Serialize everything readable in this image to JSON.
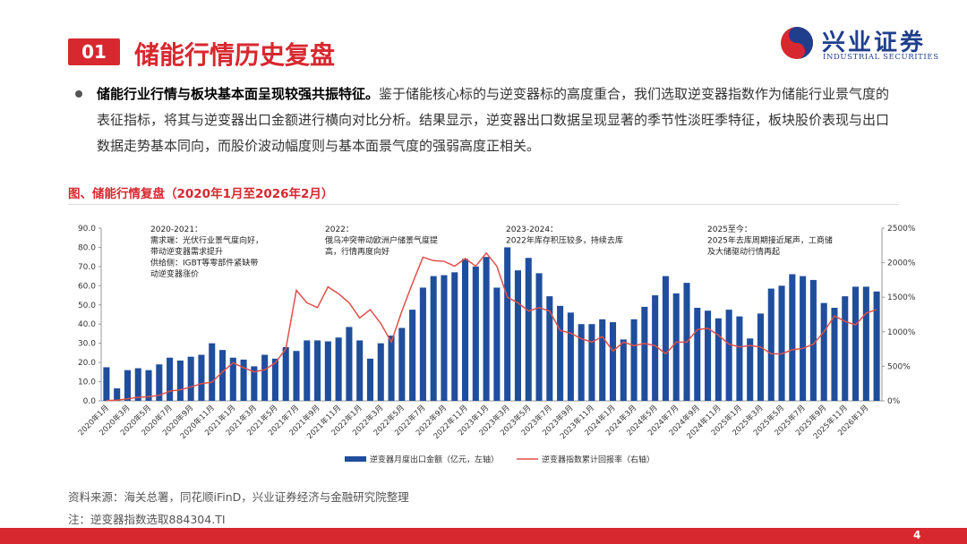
{
  "header": {
    "number": "01",
    "title": "储能行情历史复盘",
    "logo_cn": "兴业证券",
    "logo_en": "INDUSTRIAL SECURITIES"
  },
  "bullet": {
    "lead": "储能行业行情与板块基本面呈现较强共振特征。",
    "body": "鉴于储能核心标的与逆变器标的高度重合，我们选取逆变器指数作为储能行业景气度的表征指标，将其与逆变器出口金额进行横向对比分析。结果显示，逆变器出口数据呈现显著的季节性淡旺季特征，板块股价表现与出口数据走势基本同向，而股价波动幅度则与基本面景气度的强弱高度正相关。"
  },
  "figure_title": "图、储能行情复盘（2020年1月至2026年2月）",
  "source": "资料来源：海关总署，同花顺iFinD，兴业证券经济与金融研究院整理",
  "note": "注：逆变器指数选取884304.TI",
  "page_number": "4",
  "chart_data": {
    "type": "bar",
    "categories": [
      "2020年1月",
      null,
      "2020年3月",
      null,
      "2020年5月",
      null,
      "2020年7月",
      null,
      "2020年9月",
      null,
      "2020年11月",
      null,
      "2021年1月",
      null,
      "2021年3月",
      null,
      "2021年5月",
      null,
      "2021年7月",
      null,
      "2021年9月",
      null,
      "2021年11月",
      null,
      "2022年1月",
      null,
      "2022年3月",
      null,
      "2022年5月",
      null,
      "2022年7月",
      null,
      "2022年9月",
      null,
      "2022年11月",
      null,
      "2023年1月",
      null,
      "2023年3月",
      null,
      "2023年5月",
      null,
      "2023年7月",
      null,
      "2023年9月",
      null,
      "2023年11月",
      null,
      "2024年1月",
      null,
      "2024年3月",
      null,
      "2024年5月",
      null,
      "2024年7月",
      null,
      "2024年9月",
      null,
      "2024年11月",
      null,
      "2025年1月",
      null,
      "2025年3月",
      null,
      "2025年5月",
      null,
      "2025年7月",
      null,
      "2025年9月",
      null,
      "2025年11月",
      null,
      "2026年1月",
      null
    ],
    "series": [
      {
        "name": "逆变器月度出口金额（亿元，左轴）",
        "type": "bar",
        "color": "#1f4e9c",
        "values": [
          17.5,
          6.5,
          16,
          17,
          16,
          19,
          22.5,
          21,
          23,
          24,
          30,
          26.5,
          22.5,
          21.5,
          18,
          24,
          22,
          28,
          26,
          31.5,
          31.5,
          31,
          33,
          38.5,
          31.5,
          22,
          30,
          34,
          38,
          47.5,
          59,
          65,
          65.5,
          67,
          74,
          70,
          75,
          59,
          80,
          68,
          74.5,
          66.5,
          54.5,
          49.5,
          46,
          40,
          40,
          42.5,
          41,
          32,
          42.5,
          49,
          55,
          65,
          56,
          61.5,
          48.5,
          47,
          43,
          47.5,
          44,
          32.5,
          45.5,
          58.5,
          60,
          66,
          65,
          63,
          51,
          48.5,
          54.5,
          59.5,
          59.5,
          57
        ]
      },
      {
        "name": "逆变器指数累计回报率（右轴）",
        "type": "line",
        "axis": "y2",
        "color": "#e0504a",
        "values": [
          5,
          10,
          30,
          50,
          60,
          80,
          140,
          160,
          200,
          250,
          270,
          420,
          550,
          480,
          420,
          450,
          550,
          750,
          1600,
          1420,
          1350,
          1650,
          1550,
          1420,
          1200,
          1320,
          1120,
          850,
          1300,
          1700,
          2080,
          2030,
          2020,
          1950,
          2060,
          1950,
          2140,
          1950,
          1500,
          1420,
          1300,
          1350,
          1300,
          1020,
          980,
          900,
          850,
          930,
          720,
          850,
          800,
          830,
          800,
          680,
          850,
          850,
          1030,
          1050,
          950,
          820,
          780,
          800,
          780,
          680,
          680,
          740,
          760,
          820,
          1000,
          1230,
          1150,
          1100,
          1270,
          1320
        ]
      }
    ],
    "ylim": [
      0,
      90
    ],
    "yticks": [
      {
        "value": 0,
        "label": "0.0"
      },
      {
        "value": 10,
        "label": "10.0"
      },
      {
        "value": 20,
        "label": "20.0"
      },
      {
        "value": 30,
        "label": "30.0"
      },
      {
        "value": 40,
        "label": "40.0"
      },
      {
        "value": 50,
        "label": "50.0"
      },
      {
        "value": 60,
        "label": "60.0"
      },
      {
        "value": 70,
        "label": "70.0"
      },
      {
        "value": 80,
        "label": "80.0"
      },
      {
        "value": 90,
        "label": "90.0"
      }
    ],
    "y2lim": [
      0,
      2500
    ],
    "y2ticks": [
      {
        "value": 0,
        "label": "0%"
      },
      {
        "value": 500,
        "label": "500%"
      },
      {
        "value": 1000,
        "label": "1000%"
      },
      {
        "value": 1500,
        "label": "1500%"
      },
      {
        "value": 2000,
        "label": "2000%"
      },
      {
        "value": 2500,
        "label": "2500%"
      }
    ],
    "annotations": [
      {
        "lines": [
          "2020-2021：",
          "需求端：光伏行业景气度向好，",
          "带动逆变器需求提升",
          "供给侧：IGBT等零部件紧缺带",
          "动逆变器涨价"
        ]
      },
      {
        "lines": [
          "2022：",
          "俄乌冲突带动欧洲户储景气度提",
          "高，行情再度向好"
        ]
      },
      {
        "lines": [
          "2023-2024：",
          "2022年库存积压较多，持续去库"
        ]
      },
      {
        "lines": [
          "2025至今：",
          "2025年去库周期接近尾声，工商储",
          "及大储驱动行情再起"
        ]
      }
    ]
  }
}
